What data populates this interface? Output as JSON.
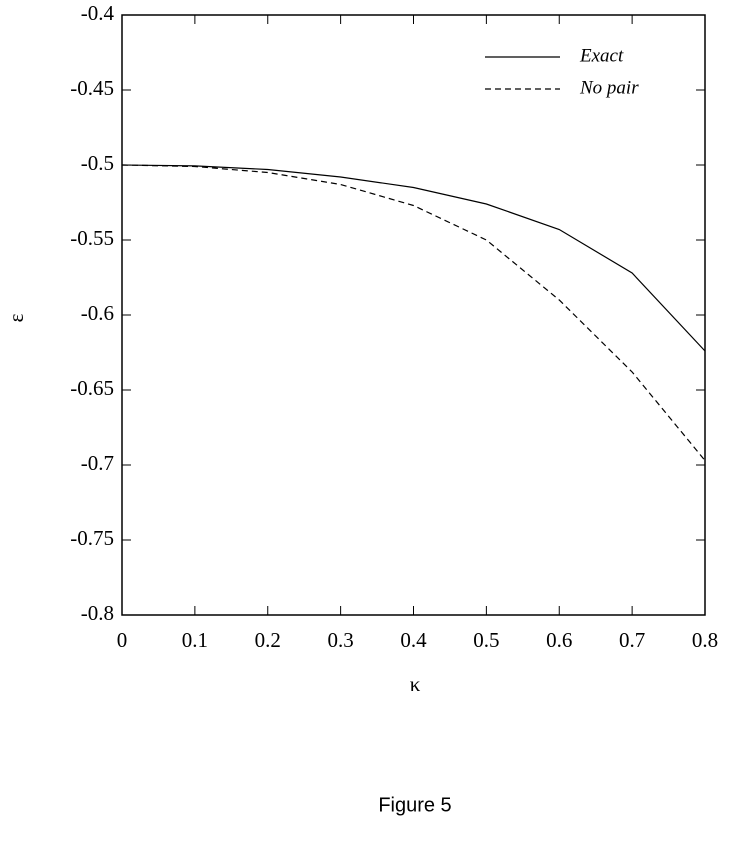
{
  "chart_data": {
    "type": "line",
    "caption": "Figure 5",
    "xlabel": "κ",
    "ylabel": "ε",
    "x": [
      0,
      0.1,
      0.2,
      0.3,
      0.4,
      0.5,
      0.6,
      0.7,
      0.8
    ],
    "series": [
      {
        "name": "Exact",
        "color": "#000000",
        "linestyle": "solid",
        "values": [
          -0.5,
          -0.5006,
          -0.503,
          -0.508,
          -0.515,
          -0.526,
          -0.543,
          -0.572,
          -0.624
        ]
      },
      {
        "name": "No pair",
        "color": "#000000",
        "linestyle": "dashed",
        "values": [
          -0.5,
          -0.501,
          -0.505,
          -0.513,
          -0.527,
          -0.55,
          -0.59,
          -0.638,
          -0.697
        ]
      }
    ],
    "xlim": [
      0,
      0.8
    ],
    "ylim": [
      -0.8,
      -0.4
    ],
    "xticks": [
      0,
      0.1,
      0.2,
      0.3,
      0.4,
      0.5,
      0.6,
      0.7,
      0.8
    ],
    "yticks": [
      -0.8,
      -0.75,
      -0.7,
      -0.65,
      -0.6,
      -0.55,
      -0.5,
      -0.45,
      -0.4
    ],
    "legend": "upper right",
    "grid": false
  }
}
